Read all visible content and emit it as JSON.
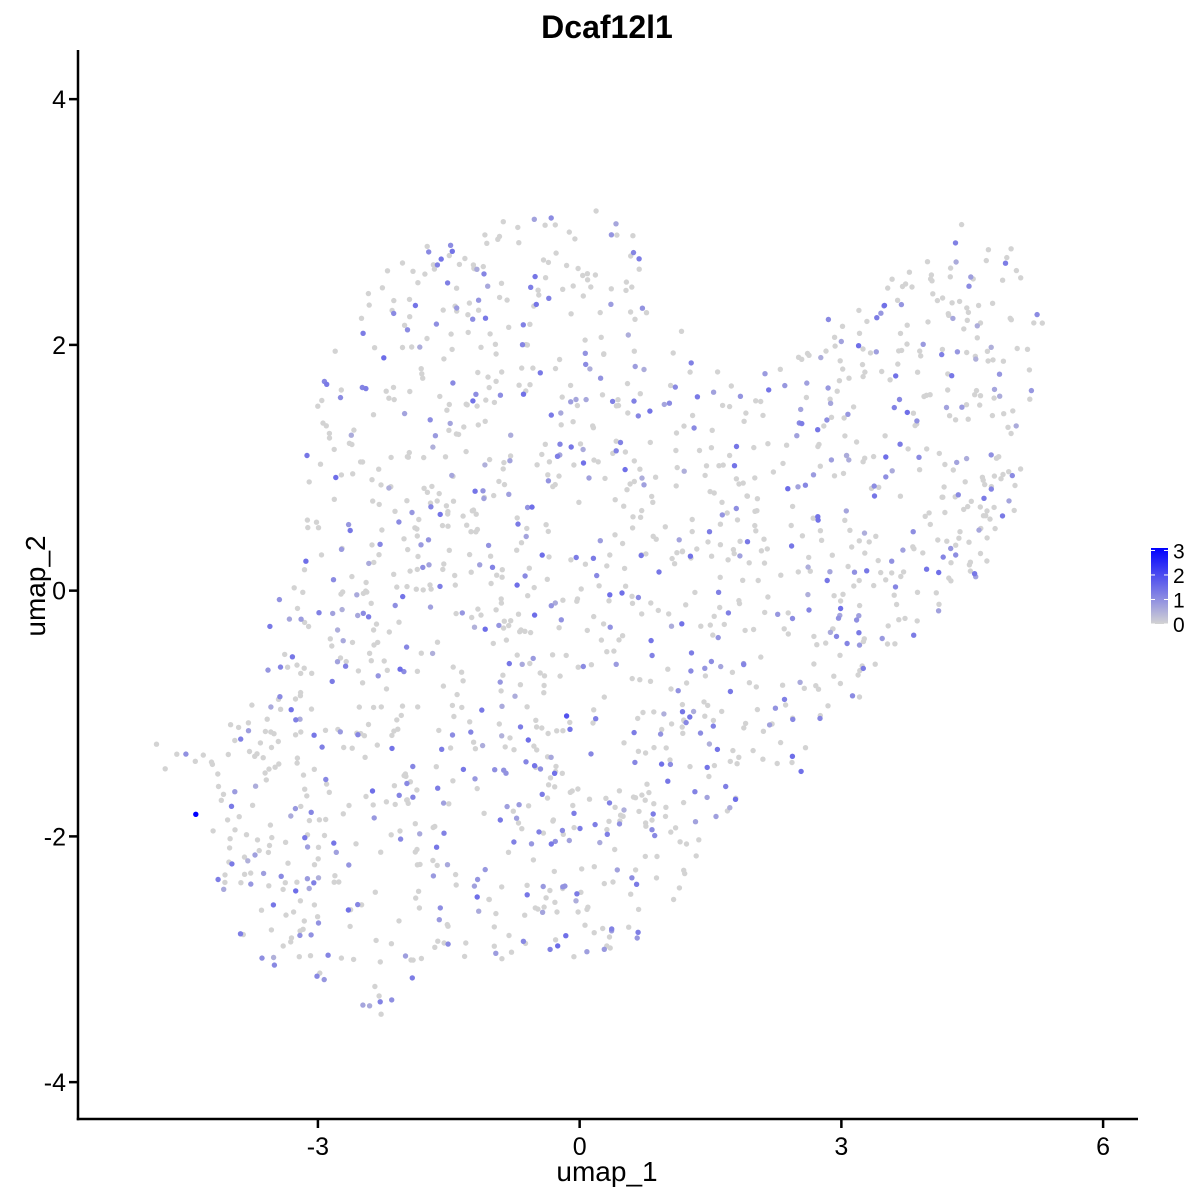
{
  "chart_data": {
    "type": "scatter",
    "title": "Dcaf12l1",
    "xlabel": "umap_1",
    "ylabel": "umap_2",
    "xlim": [
      -5.75,
      6.4
    ],
    "ylim": [
      -4.3,
      4.4
    ],
    "x_ticks": [
      -3,
      0,
      3,
      6
    ],
    "x_tick_labels": [
      "-3",
      "0",
      "3",
      "6"
    ],
    "y_ticks": [
      -4,
      -2,
      0,
      2,
      4
    ],
    "y_tick_labels": [
      "-4",
      "-2",
      "0",
      "2",
      "4"
    ],
    "grid": false,
    "legend": {
      "title": "",
      "placement": "right",
      "type": "colorbar",
      "ticks": [
        0,
        1,
        2,
        3
      ],
      "tick_labels": [
        "0",
        "1",
        "2",
        "3"
      ],
      "range": [
        0,
        3.1
      ]
    },
    "colors": {
      "low": "#D3D3D3",
      "high": "#0000FF"
    },
    "sampled_points": {
      "note_count": 1600,
      "region": "filled polygon in umap space",
      "polygon": [
        [
          -4.9,
          -1.15
        ],
        [
          -4.6,
          -1.3
        ],
        [
          -4.2,
          -1.35
        ],
        [
          -3.9,
          -0.85
        ],
        [
          -3.3,
          0.2
        ],
        [
          -3.1,
          1.3
        ],
        [
          -2.9,
          2.0
        ],
        [
          -2.5,
          2.4
        ],
        [
          -2.0,
          2.8
        ],
        [
          -1.2,
          3.0
        ],
        [
          -0.3,
          3.05
        ],
        [
          0.2,
          3.15
        ],
        [
          0.7,
          2.85
        ],
        [
          1.1,
          2.45
        ],
        [
          1.2,
          1.95
        ],
        [
          1.8,
          1.7
        ],
        [
          2.6,
          2.05
        ],
        [
          3.2,
          2.45
        ],
        [
          3.8,
          2.6
        ],
        [
          4.45,
          3.05
        ],
        [
          4.85,
          2.9
        ],
        [
          5.2,
          2.5
        ],
        [
          5.4,
          2.0
        ],
        [
          5.2,
          1.3
        ],
        [
          5.05,
          0.9
        ],
        [
          5.05,
          0.55
        ],
        [
          4.6,
          0.1
        ],
        [
          4.1,
          -0.2
        ],
        [
          3.6,
          -0.55
        ],
        [
          3.2,
          -0.95
        ],
        [
          2.6,
          -1.5
        ],
        [
          2.2,
          -1.55
        ],
        [
          1.8,
          -1.75
        ],
        [
          1.3,
          -2.25
        ],
        [
          0.9,
          -2.75
        ],
        [
          0.4,
          -2.95
        ],
        [
          0.0,
          -3.05
        ],
        [
          -0.6,
          -2.95
        ],
        [
          -1.3,
          -3.1
        ],
        [
          -1.6,
          -3.0
        ],
        [
          -2.0,
          -3.25
        ],
        [
          -2.35,
          -3.5
        ],
        [
          -2.7,
          -3.3
        ],
        [
          -3.2,
          -3.15
        ],
        [
          -3.7,
          -3.0
        ],
        [
          -4.1,
          -2.65
        ],
        [
          -4.3,
          -2.2
        ],
        [
          -4.3,
          -1.6
        ]
      ],
      "expressing_fraction": 0.33,
      "outliers": [
        {
          "x": -4.4,
          "y": -1.82,
          "value": 3.1
        },
        {
          "x": -0.15,
          "y": -1.02,
          "value": 1.9
        },
        {
          "x": -4.85,
          "y": -1.25,
          "value": 0
        },
        {
          "x": -4.75,
          "y": -1.45,
          "value": 0
        }
      ]
    }
  }
}
